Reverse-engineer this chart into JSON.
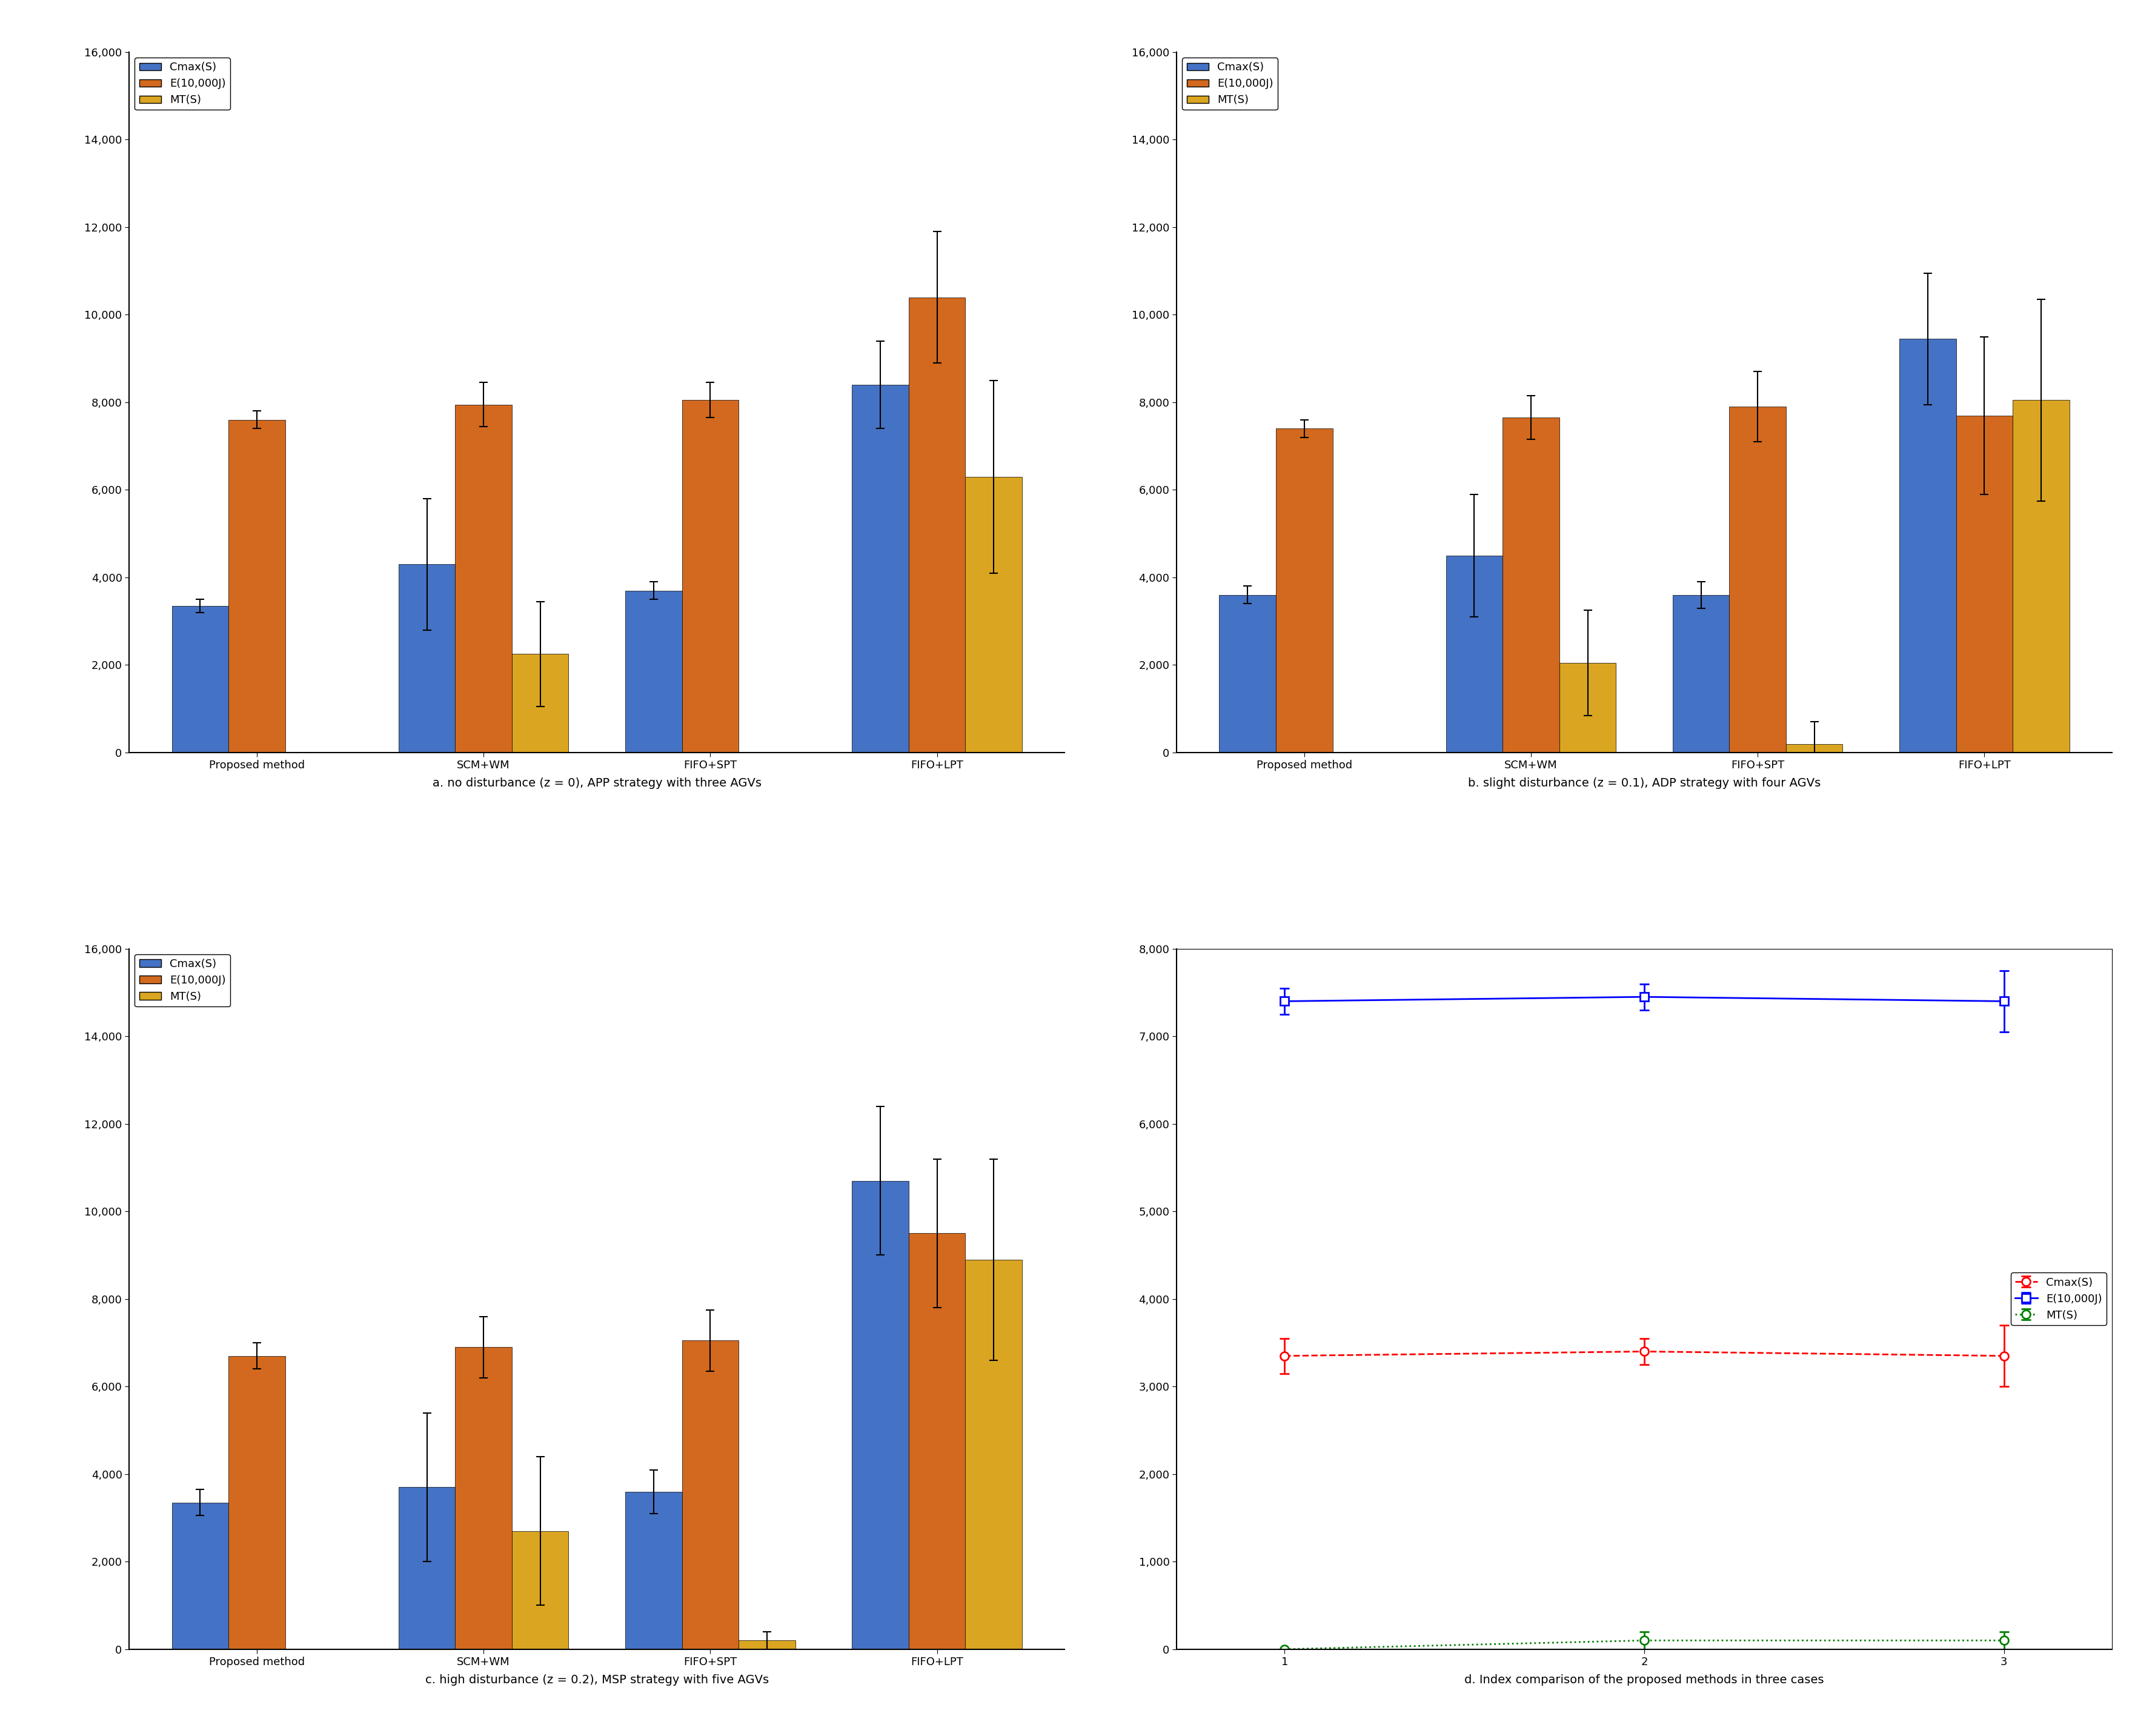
{
  "bar_colors": [
    "#4472C4",
    "#D2691E",
    "#DAA520"
  ],
  "legend_labels": [
    "Cmax(S)",
    "E(10,000J)",
    "MT(S)"
  ],
  "categories": [
    "Proposed method",
    "SCM+WM",
    "FIFO+SPT",
    "FIFO+LPT"
  ],
  "panel_a": {
    "title": "a. no disturbance (z = 0), APP strategy with three AGVs",
    "cmax": [
      3350,
      4300,
      3700,
      8400
    ],
    "energy": [
      7600,
      7950,
      8050,
      10400
    ],
    "mt": [
      0,
      2250,
      0,
      6300
    ],
    "cmax_err": [
      150,
      1500,
      200,
      1000
    ],
    "energy_err": [
      200,
      500,
      400,
      1500
    ],
    "mt_err": [
      0,
      1200,
      0,
      2200
    ],
    "mt_visible": [
      false,
      true,
      false,
      true
    ]
  },
  "panel_b": {
    "title": "b. slight disturbance (z = 0.1), ADP strategy with four AGVs",
    "cmax": [
      3600,
      4500,
      3600,
      9450
    ],
    "energy": [
      7400,
      7650,
      7900,
      7700
    ],
    "mt": [
      0,
      2050,
      200,
      8050
    ],
    "cmax_err": [
      200,
      1400,
      300,
      1500
    ],
    "energy_err": [
      200,
      500,
      800,
      1800
    ],
    "mt_err": [
      0,
      1200,
      500,
      2300
    ],
    "mt_visible": [
      false,
      true,
      true,
      true
    ]
  },
  "panel_c": {
    "title": "c. high disturbance (z = 0.2), MSP strategy with five AGVs",
    "cmax": [
      3350,
      3700,
      3600,
      10700
    ],
    "energy": [
      6700,
      6900,
      7050,
      9500
    ],
    "mt": [
      0,
      2700,
      200,
      8900
    ],
    "cmax_err": [
      300,
      1700,
      500,
      1700
    ],
    "energy_err": [
      300,
      700,
      700,
      1700
    ],
    "mt_err": [
      0,
      1700,
      200,
      2300
    ],
    "mt_visible": [
      false,
      true,
      true,
      true
    ]
  },
  "panel_d": {
    "title": "d. Index comparison of the proposed methods in three cases",
    "x": [
      1,
      2,
      3
    ],
    "cmax_vals": [
      3350,
      3400,
      3350
    ],
    "energy_vals": [
      7400,
      7450,
      7400
    ],
    "mt_vals": [
      0,
      100,
      100
    ],
    "cmax_err": [
      200,
      150,
      350
    ],
    "energy_err": [
      150,
      150,
      350
    ],
    "mt_err": [
      0,
      100,
      100
    ],
    "cmax_color": "#FF0000",
    "energy_color": "#0000FF",
    "mt_color": "#008000",
    "ylim": [
      0,
      8000
    ],
    "yticks": [
      0,
      1000,
      2000,
      3000,
      4000,
      5000,
      6000,
      7000,
      8000
    ]
  },
  "bar_ylim": [
    0,
    16000
  ],
  "bar_yticks": [
    0,
    2000,
    4000,
    6000,
    8000,
    10000,
    12000,
    14000,
    16000
  ],
  "bg_color": "#FFFFFF",
  "axis_color": "#000000",
  "tick_label_size": 13,
  "axis_label_size": 13,
  "legend_fontsize": 13,
  "title_fontsize": 14,
  "bar_width": 0.25
}
